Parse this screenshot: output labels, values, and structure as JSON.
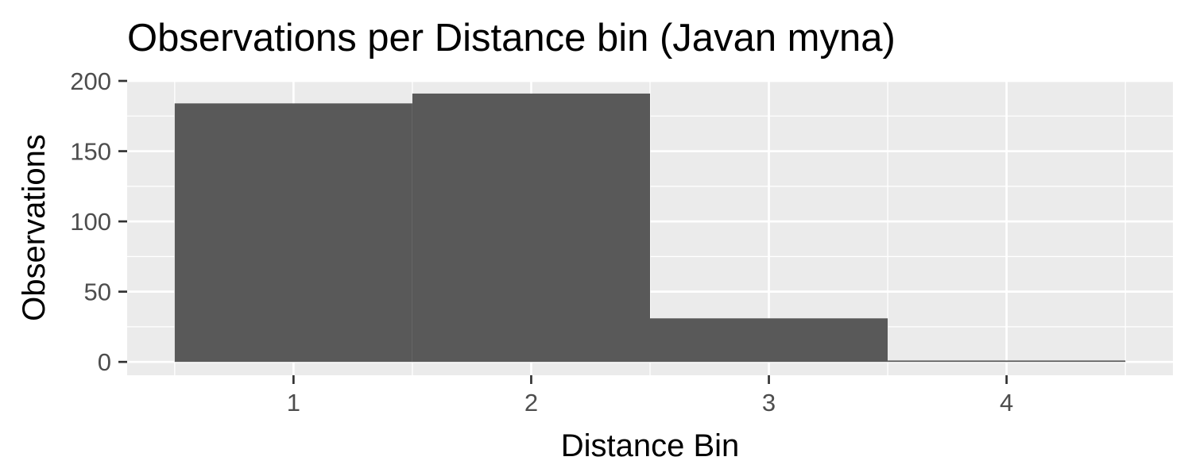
{
  "chart_data": {
    "type": "bar",
    "title": "Observations per Distance bin (Javan myna)",
    "xlabel": "Distance Bin",
    "ylabel": "Observations",
    "categories": [
      "1",
      "2",
      "3",
      "4"
    ],
    "x": [
      1,
      2,
      3,
      4
    ],
    "values": [
      184,
      191,
      31,
      1
    ],
    "xlim": [
      0.3,
      4.7
    ],
    "ylim": [
      -9.5,
      200
    ],
    "x_ticks": [
      1,
      2,
      3,
      4
    ],
    "y_ticks": [
      0,
      50,
      100,
      150,
      200
    ],
    "grid": true,
    "legend": "none",
    "colors": {
      "bar": "#595959",
      "panel_background": "#ebebeb",
      "grid": "#ffffff",
      "tick_text": "#4d4d4d",
      "text": "#000000"
    }
  }
}
